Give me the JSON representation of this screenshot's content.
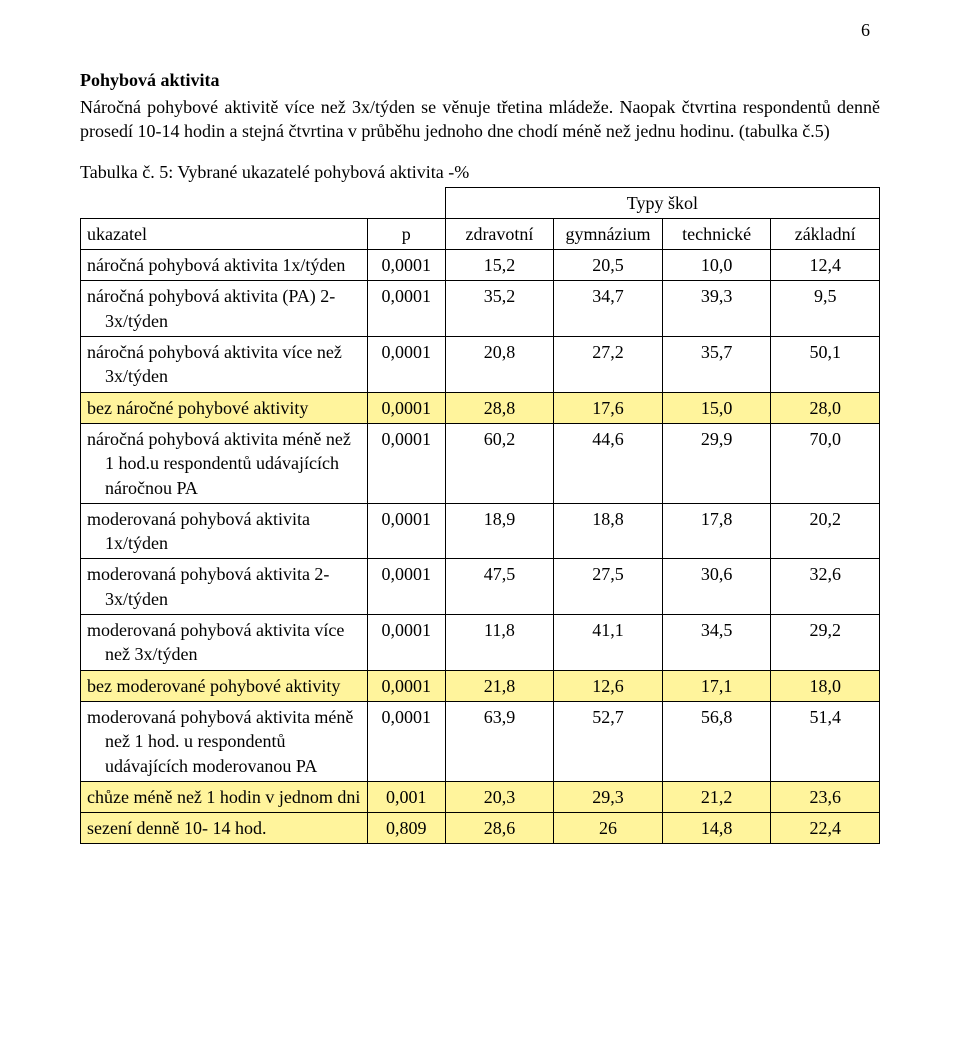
{
  "page_number": "6",
  "section_title": "Pohybová aktivita",
  "intro_paragraph": "Náročná pohybové aktivitě více než 3x/týden se věnuje třetina mládeže. Naopak čtvrtina respondentů denně prosedí 10-14 hodin a stejná čtvrtina v průběhu jednoho dne chodí méně než jednu hodinu. (tabulka č.5)",
  "table_caption": "Tabulka č. 5: Vybrané ukazatelé pohybová aktivita -%",
  "header": {
    "types_label": "Typy škol",
    "indicator_label": "ukazatel",
    "p_label": "p",
    "schools": [
      "zdravotní",
      "gymnázium",
      "technické",
      "základní"
    ]
  },
  "rows": [
    {
      "label": "náročná pohybová aktivita 1x/týden",
      "p": "0,0001",
      "vals": [
        "15,2",
        "20,5",
        "10,0",
        "12,4"
      ],
      "hl": false
    },
    {
      "label": "náročná pohybová aktivita (PA) 2-3x/týden",
      "p": "0,0001",
      "vals": [
        "35,2",
        "34,7",
        "39,3",
        "9,5"
      ],
      "hl": false
    },
    {
      "label": "náročná pohybová aktivita více než 3x/týden",
      "p": "0,0001",
      "vals": [
        "20,8",
        "27,2",
        "35,7",
        "50,1"
      ],
      "hl": false
    },
    {
      "label": "bez náročné pohybové aktivity",
      "p": "0,0001",
      "vals": [
        "28,8",
        "17,6",
        "15,0",
        "28,0"
      ],
      "hl": true
    },
    {
      "label": "náročná pohybová aktivita méně než 1 hod.u respondentů udávajících náročnou PA",
      "p": "0,0001",
      "vals": [
        "60,2",
        "44,6",
        "29,9",
        "70,0"
      ],
      "hl": false
    },
    {
      "label": "moderovaná pohybová aktivita 1x/týden",
      "p": "0,0001",
      "vals": [
        "18,9",
        "18,8",
        "17,8",
        "20,2"
      ],
      "hl": false
    },
    {
      "label": "moderovaná pohybová aktivita 2-3x/týden",
      "p": "0,0001",
      "vals": [
        "47,5",
        "27,5",
        "30,6",
        "32,6"
      ],
      "hl": false
    },
    {
      "label": "moderovaná pohybová aktivita více než 3x/týden",
      "p": "0,0001",
      "vals": [
        "11,8",
        "41,1",
        "34,5",
        "29,2"
      ],
      "hl": false
    },
    {
      "label": "bez moderované pohybové aktivity",
      "p": "0,0001",
      "vals": [
        "21,8",
        "12,6",
        "17,1",
        "18,0"
      ],
      "hl": true
    },
    {
      "label": "moderovaná pohybová aktivita méně než 1 hod. u respondentů udávajících moderovanou PA",
      "p": "0,0001",
      "vals": [
        "63,9",
        "52,7",
        "56,8",
        "51,4"
      ],
      "hl": false
    },
    {
      "label": "chůze méně než 1 hodin v jednom dni",
      "p": "0,001",
      "vals": [
        "20,3",
        "29,3",
        "21,2",
        "23,6"
      ],
      "hl": true
    },
    {
      "label": "sezení denně 10- 14 hod.",
      "p": "0,809",
      "vals": [
        "28,6",
        "26",
        "14,8",
        "22,4"
      ],
      "hl": true
    }
  ],
  "colors": {
    "highlight": "#fff49c",
    "border": "#000000",
    "text": "#000000",
    "background": "#ffffff"
  }
}
